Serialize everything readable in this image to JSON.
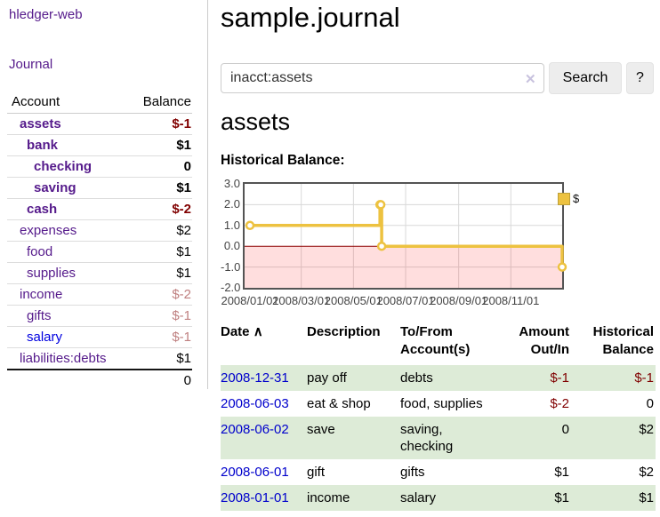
{
  "sidebar": {
    "brand": "hledger-web",
    "nav_journal": "Journal",
    "accounts": {
      "col_account": "Account",
      "col_balance": "Balance",
      "rows": [
        {
          "name": "assets",
          "balance": "$-1"
        },
        {
          "name": "bank",
          "balance": "$1"
        },
        {
          "name": "checking",
          "balance": "0"
        },
        {
          "name": "saving",
          "balance": "$1"
        },
        {
          "name": "cash",
          "balance": "$-2"
        },
        {
          "name": "expenses",
          "balance": "$2"
        },
        {
          "name": "food",
          "balance": "$1"
        },
        {
          "name": "supplies",
          "balance": "$1"
        },
        {
          "name": "income",
          "balance": "$-2"
        },
        {
          "name": "gifts",
          "balance": "$-1"
        },
        {
          "name": "salary",
          "balance": "$-1"
        },
        {
          "name": "liabilities:debts",
          "balance": "$1"
        }
      ],
      "total": "0"
    }
  },
  "header": {
    "title": "sample.journal",
    "search": {
      "value": "inacct:assets",
      "clear": "✕",
      "button": "Search",
      "help": "?"
    }
  },
  "main": {
    "heading": "assets",
    "chart_title": "Historical Balance:"
  },
  "chart_data": {
    "type": "line",
    "step": true,
    "series": [
      {
        "name": "$",
        "color": "#edc240",
        "points": [
          [
            "2008-01-01",
            1
          ],
          [
            "2008-06-01",
            2
          ],
          [
            "2008-06-02",
            2
          ],
          [
            "2008-06-03",
            0
          ],
          [
            "2008-12-31",
            -1
          ]
        ]
      }
    ],
    "x_ticks": [
      "2008/01/01",
      "2008/03/01",
      "2008/05/01",
      "2008/07/01",
      "2008/09/01",
      "2008/11/01"
    ],
    "y_ticks": [
      3.0,
      2.0,
      1.0,
      0.0,
      -1.0,
      -2.0
    ],
    "ylim": [
      -2,
      3
    ],
    "xlim": [
      "2008-01-01",
      "2008-12-31"
    ],
    "grid": true,
    "legend": {
      "label": "$",
      "position": "top-right"
    },
    "zero_line_color": "#8b0000",
    "negative_region_color": "rgba(255,0,0,0.13)"
  },
  "register": {
    "headers": {
      "date": "Date",
      "sort_icon": "∧",
      "description": "Description",
      "accounts_l1": "To/From",
      "accounts_l2": "Account(s)",
      "amount_l1": "Amount",
      "amount_l2": "Out/In",
      "balance_l1": "Historical",
      "balance_l2": "Balance"
    },
    "rows": [
      {
        "date": "2008-12-31",
        "description": "pay off",
        "accounts": "debts",
        "amount": "$-1",
        "balance": "$-1"
      },
      {
        "date": "2008-06-03",
        "description": "eat & shop",
        "accounts": "food, supplies",
        "amount": "$-2",
        "balance": "0"
      },
      {
        "date": "2008-06-02",
        "description": "save",
        "accounts": "saving,\nchecking",
        "amount": "0",
        "balance": "$2"
      },
      {
        "date": "2008-06-01",
        "description": "gift",
        "accounts": "gifts",
        "amount": "$1",
        "balance": "$2"
      },
      {
        "date": "2008-01-01",
        "description": "income",
        "accounts": "salary",
        "amount": "$1",
        "balance": "$1"
      }
    ]
  },
  "colors": {
    "link_purple": "#551a8b",
    "link_blue": "#0000cc",
    "negative": "#800000",
    "negative_muted": "#bf8080",
    "row_green": "#ddebd7",
    "series_yellow": "#edc240"
  }
}
